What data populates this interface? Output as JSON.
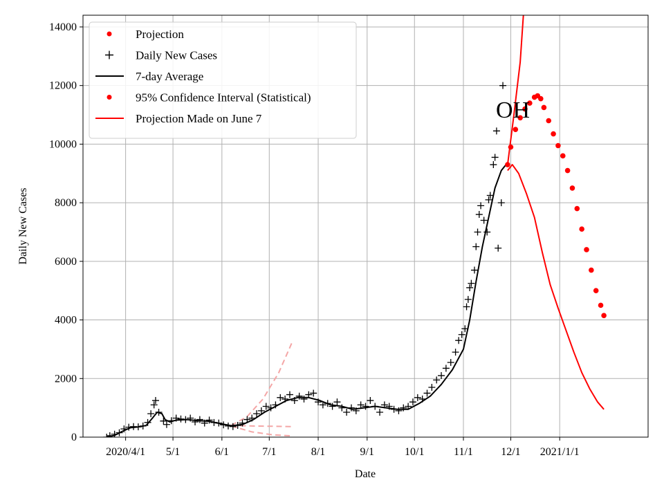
{
  "chart_data": {
    "type": "line",
    "title": "",
    "xlabel": "Date",
    "ylabel": "Daily New Cases",
    "annotation": "OH",
    "grid": true,
    "legend_position": "top-left",
    "xlim": [
      "2020-03-05",
      "2021-02-26"
    ],
    "ylim": [
      0,
      14400
    ],
    "x_ticks": [
      {
        "date": "2020-04-01",
        "label": "2020/4/1"
      },
      {
        "date": "2020-05-01",
        "label": "5/1"
      },
      {
        "date": "2020-06-01",
        "label": "6/1"
      },
      {
        "date": "2020-07-01",
        "label": "7/1"
      },
      {
        "date": "2020-08-01",
        "label": "8/1"
      },
      {
        "date": "2020-09-01",
        "label": "9/1"
      },
      {
        "date": "2020-10-01",
        "label": "10/1"
      },
      {
        "date": "2020-11-01",
        "label": "11/1"
      },
      {
        "date": "2020-12-01",
        "label": "12/1"
      },
      {
        "date": "2021-01-01",
        "label": "2021/1/1"
      }
    ],
    "y_ticks": [
      0,
      2000,
      4000,
      6000,
      8000,
      10000,
      12000,
      14000
    ],
    "legend": [
      {
        "label": "Projection",
        "marker": "dot",
        "color": "#ff0000"
      },
      {
        "label": "Daily New Cases",
        "marker": "plus",
        "color": "#000000"
      },
      {
        "label": "7-day Average",
        "marker": "line",
        "color": "#000000"
      },
      {
        "label": "95% Confidence Interval (Statistical)",
        "marker": "dot",
        "color": "#ff0000"
      },
      {
        "label": "Projection Made on June 7",
        "marker": "line",
        "color": "#ff0000"
      }
    ],
    "series": [
      {
        "name": "Daily New Cases",
        "style": "plus",
        "color": "#000000",
        "points": [
          [
            "2020-03-20",
            0
          ],
          [
            "2020-03-22",
            50
          ],
          [
            "2020-03-25",
            100
          ],
          [
            "2020-03-28",
            150
          ],
          [
            "2020-03-31",
            280
          ],
          [
            "2020-04-03",
            340
          ],
          [
            "2020-04-06",
            360
          ],
          [
            "2020-04-09",
            350
          ],
          [
            "2020-04-12",
            380
          ],
          [
            "2020-04-15",
            500
          ],
          [
            "2020-04-17",
            800
          ],
          [
            "2020-04-19",
            1100
          ],
          [
            "2020-04-20",
            1250
          ],
          [
            "2020-04-22",
            850
          ],
          [
            "2020-04-25",
            550
          ],
          [
            "2020-04-27",
            430
          ],
          [
            "2020-04-30",
            560
          ],
          [
            "2020-05-03",
            650
          ],
          [
            "2020-05-06",
            620
          ],
          [
            "2020-05-09",
            600
          ],
          [
            "2020-05-12",
            650
          ],
          [
            "2020-05-15",
            520
          ],
          [
            "2020-05-18",
            600
          ],
          [
            "2020-05-21",
            480
          ],
          [
            "2020-05-24",
            580
          ],
          [
            "2020-05-27",
            500
          ],
          [
            "2020-05-30",
            480
          ],
          [
            "2020-06-02",
            420
          ],
          [
            "2020-06-05",
            380
          ],
          [
            "2020-06-08",
            360
          ],
          [
            "2020-06-11",
            400
          ],
          [
            "2020-06-14",
            480
          ],
          [
            "2020-06-17",
            600
          ],
          [
            "2020-06-20",
            650
          ],
          [
            "2020-06-23",
            800
          ],
          [
            "2020-06-26",
            900
          ],
          [
            "2020-06-29",
            1050
          ],
          [
            "2020-07-02",
            1000
          ],
          [
            "2020-07-05",
            1100
          ],
          [
            "2020-07-08",
            1350
          ],
          [
            "2020-07-11",
            1300
          ],
          [
            "2020-07-14",
            1450
          ],
          [
            "2020-07-17",
            1250
          ],
          [
            "2020-07-20",
            1400
          ],
          [
            "2020-07-23",
            1300
          ],
          [
            "2020-07-26",
            1450
          ],
          [
            "2020-07-29",
            1500
          ],
          [
            "2020-08-01",
            1200
          ],
          [
            "2020-08-04",
            1100
          ],
          [
            "2020-08-07",
            1150
          ],
          [
            "2020-08-10",
            1050
          ],
          [
            "2020-08-13",
            1200
          ],
          [
            "2020-08-16",
            1000
          ],
          [
            "2020-08-19",
            850
          ],
          [
            "2020-08-22",
            1000
          ],
          [
            "2020-08-25",
            900
          ],
          [
            "2020-08-28",
            1100
          ],
          [
            "2020-08-31",
            1050
          ],
          [
            "2020-09-03",
            1250
          ],
          [
            "2020-09-06",
            1050
          ],
          [
            "2020-09-09",
            850
          ],
          [
            "2020-09-12",
            1100
          ],
          [
            "2020-09-15",
            1050
          ],
          [
            "2020-09-18",
            950
          ],
          [
            "2020-09-21",
            900
          ],
          [
            "2020-09-24",
            1000
          ],
          [
            "2020-09-27",
            1050
          ],
          [
            "2020-09-30",
            1200
          ],
          [
            "2020-10-03",
            1350
          ],
          [
            "2020-10-06",
            1300
          ],
          [
            "2020-10-09",
            1500
          ],
          [
            "2020-10-12",
            1700
          ],
          [
            "2020-10-15",
            1950
          ],
          [
            "2020-10-18",
            2100
          ],
          [
            "2020-10-21",
            2350
          ],
          [
            "2020-10-24",
            2550
          ],
          [
            "2020-10-27",
            2900
          ],
          [
            "2020-10-29",
            3300
          ],
          [
            "2020-10-31",
            3500
          ],
          [
            "2020-11-02",
            3700
          ],
          [
            "2020-11-03",
            4450
          ],
          [
            "2020-11-04",
            4700
          ],
          [
            "2020-11-05",
            5100
          ],
          [
            "2020-11-06",
            5250
          ],
          [
            "2020-11-08",
            5700
          ],
          [
            "2020-11-09",
            6500
          ],
          [
            "2020-11-10",
            7000
          ],
          [
            "2020-11-11",
            7600
          ],
          [
            "2020-11-12",
            7900
          ],
          [
            "2020-11-14",
            7400
          ],
          [
            "2020-11-16",
            7000
          ],
          [
            "2020-11-17",
            8100
          ],
          [
            "2020-11-18",
            8250
          ],
          [
            "2020-11-20",
            9300
          ],
          [
            "2020-11-21",
            9550
          ],
          [
            "2020-11-22",
            10450
          ],
          [
            "2020-11-23",
            6450
          ],
          [
            "2020-11-25",
            8000
          ],
          [
            "2020-11-26",
            12000
          ]
        ]
      },
      {
        "name": "7-day Average",
        "style": "line",
        "color": "#000000",
        "points": [
          [
            "2020-03-20",
            0
          ],
          [
            "2020-03-25",
            60
          ],
          [
            "2020-03-30",
            200
          ],
          [
            "2020-04-04",
            320
          ],
          [
            "2020-04-09",
            350
          ],
          [
            "2020-04-14",
            400
          ],
          [
            "2020-04-18",
            650
          ],
          [
            "2020-04-21",
            850
          ],
          [
            "2020-04-24",
            800
          ],
          [
            "2020-04-26",
            600
          ],
          [
            "2020-04-29",
            520
          ],
          [
            "2020-05-03",
            580
          ],
          [
            "2020-05-10",
            600
          ],
          [
            "2020-05-17",
            560
          ],
          [
            "2020-05-24",
            540
          ],
          [
            "2020-05-31",
            460
          ],
          [
            "2020-06-07",
            390
          ],
          [
            "2020-06-14",
            430
          ],
          [
            "2020-06-21",
            600
          ],
          [
            "2020-06-28",
            850
          ],
          [
            "2020-07-05",
            1050
          ],
          [
            "2020-07-12",
            1250
          ],
          [
            "2020-07-19",
            1350
          ],
          [
            "2020-07-26",
            1350
          ],
          [
            "2020-08-02",
            1250
          ],
          [
            "2020-08-09",
            1100
          ],
          [
            "2020-08-16",
            1050
          ],
          [
            "2020-08-23",
            950
          ],
          [
            "2020-08-30",
            1000
          ],
          [
            "2020-09-06",
            1050
          ],
          [
            "2020-09-13",
            1000
          ],
          [
            "2020-09-20",
            950
          ],
          [
            "2020-09-27",
            950
          ],
          [
            "2020-10-04",
            1150
          ],
          [
            "2020-10-11",
            1400
          ],
          [
            "2020-10-18",
            1800
          ],
          [
            "2020-10-25",
            2300
          ],
          [
            "2020-11-01",
            3000
          ],
          [
            "2020-11-05",
            4000
          ],
          [
            "2020-11-09",
            5300
          ],
          [
            "2020-11-13",
            6500
          ],
          [
            "2020-11-17",
            7500
          ],
          [
            "2020-11-21",
            8500
          ],
          [
            "2020-11-25",
            9100
          ],
          [
            "2020-11-28",
            9300
          ]
        ]
      },
      {
        "name": "Projection",
        "style": "dots",
        "color": "#ff0000",
        "points": [
          [
            "2020-11-29",
            9300
          ],
          [
            "2020-12-01",
            9900
          ],
          [
            "2020-12-04",
            10500
          ],
          [
            "2020-12-07",
            10900
          ],
          [
            "2020-12-10",
            11200
          ],
          [
            "2020-12-13",
            11400
          ],
          [
            "2020-12-16",
            11600
          ],
          [
            "2020-12-18",
            11650
          ],
          [
            "2020-12-20",
            11550
          ],
          [
            "2020-12-22",
            11250
          ],
          [
            "2020-12-25",
            10800
          ],
          [
            "2020-12-28",
            10350
          ],
          [
            "2020-12-31",
            9950
          ],
          [
            "2021-01-03",
            9600
          ],
          [
            "2021-01-06",
            9100
          ],
          [
            "2021-01-09",
            8500
          ],
          [
            "2021-01-12",
            7800
          ],
          [
            "2021-01-15",
            7100
          ],
          [
            "2021-01-18",
            6400
          ],
          [
            "2021-01-21",
            5700
          ],
          [
            "2021-01-24",
            5000
          ],
          [
            "2021-01-27",
            4500
          ],
          [
            "2021-01-29",
            4150
          ]
        ]
      },
      {
        "name": "95% Confidence Interval (Statistical) upper",
        "style": "line",
        "color": "#ff0000",
        "points": [
          [
            "2020-11-29",
            9300
          ],
          [
            "2020-12-03",
            11000
          ],
          [
            "2020-12-07",
            12800
          ],
          [
            "2020-12-09",
            14400
          ]
        ]
      },
      {
        "name": "95% Confidence Interval (Statistical) lower",
        "style": "line",
        "color": "#ff0000",
        "points": [
          [
            "2020-11-29",
            9100
          ],
          [
            "2020-12-02",
            9300
          ],
          [
            "2020-12-06",
            9000
          ],
          [
            "2020-12-11",
            8300
          ],
          [
            "2020-12-16",
            7500
          ],
          [
            "2020-12-21",
            6300
          ],
          [
            "2020-12-26",
            5200
          ],
          [
            "2020-12-31",
            4400
          ],
          [
            "2021-01-05",
            3650
          ],
          [
            "2021-01-10",
            2900
          ],
          [
            "2021-01-15",
            2200
          ],
          [
            "2021-01-20",
            1650
          ],
          [
            "2021-01-25",
            1200
          ],
          [
            "2021-01-29",
            950
          ]
        ]
      },
      {
        "name": "Projection Made on June 7 upper",
        "style": "dash",
        "color": "#f4a6a6",
        "points": [
          [
            "2020-06-07",
            400
          ],
          [
            "2020-06-17",
            700
          ],
          [
            "2020-06-27",
            1300
          ],
          [
            "2020-07-07",
            2200
          ],
          [
            "2020-07-16",
            3300
          ]
        ]
      },
      {
        "name": "Projection Made on June 7 middle",
        "style": "dash",
        "color": "#f4a6a6",
        "points": [
          [
            "2020-06-07",
            400
          ],
          [
            "2020-06-20",
            380
          ],
          [
            "2020-07-03",
            370
          ],
          [
            "2020-07-16",
            360
          ]
        ]
      },
      {
        "name": "Projection Made on June 7 lower",
        "style": "dash",
        "color": "#f4a6a6",
        "points": [
          [
            "2020-06-07",
            380
          ],
          [
            "2020-06-20",
            180
          ],
          [
            "2020-07-03",
            80
          ],
          [
            "2020-07-16",
            40
          ]
        ]
      }
    ]
  }
}
